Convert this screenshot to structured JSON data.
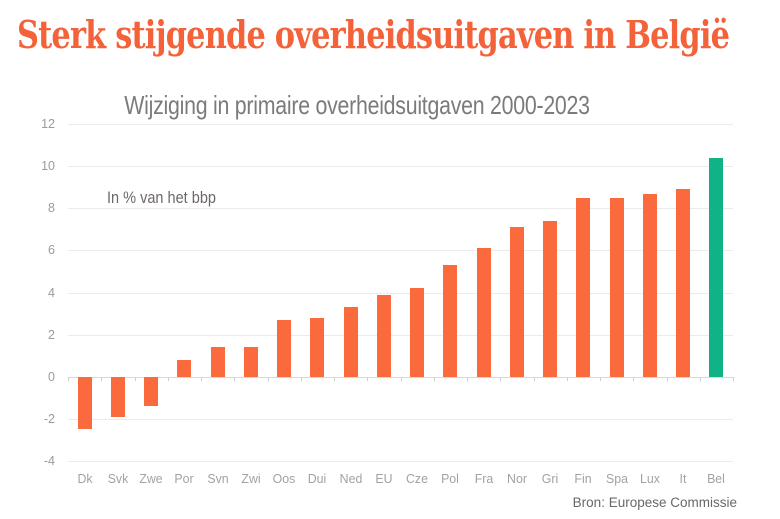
{
  "header": {
    "title": "Sterk stijgende overheidsuitgaven in België"
  },
  "colors": {
    "title": "#F4623A",
    "subtitle": "#7B7B7B",
    "bar": "#FA6A3D",
    "highlight": "#11B286",
    "axis_label": "#9B9B9B",
    "gridline": "#EBEBEB"
  },
  "chart_data": {
    "type": "bar",
    "title": "Wijziging in primaire overheidsuitgaven 2000-2023",
    "annotation": "In % van het bbp",
    "categories": [
      "Dk",
      "Svk",
      "Zwe",
      "Por",
      "Svn",
      "Zwi",
      "Oos",
      "Dui",
      "Ned",
      "EU",
      "Cze",
      "Pol",
      "Fra",
      "Nor",
      "Gri",
      "Fin",
      "Spa",
      "Lux",
      "It",
      "Bel"
    ],
    "values": [
      -2.5,
      -1.9,
      -1.4,
      0.8,
      1.4,
      1.4,
      2.7,
      2.8,
      3.3,
      3.9,
      4.2,
      5.3,
      6.1,
      7.1,
      7.4,
      8.5,
      8.5,
      8.7,
      8.9,
      10.4
    ],
    "ylim": [
      -4,
      12
    ],
    "y_ticks": [
      12,
      10,
      8,
      6,
      4,
      2,
      0,
      -2,
      -4
    ],
    "grid": true,
    "legend": "none",
    "bar_color": "#FA6A3D",
    "highlight_color": "#11B286",
    "highlight_category": "Bel",
    "source": "Bron: Europese Commissie"
  }
}
